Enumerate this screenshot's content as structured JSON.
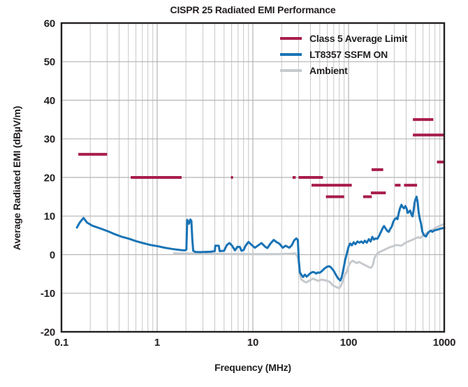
{
  "chart_data": {
    "type": "line",
    "title": "CISPR 25 Radiated EMI Performance",
    "xlabel": "Frequency (MHz)",
    "ylabel": "Average Radiated EMI (dBµV/m)",
    "x_scale": "log",
    "xlim": [
      0.1,
      1000
    ],
    "ylim": [
      -20,
      60
    ],
    "x_ticks": [
      0.1,
      1,
      10,
      100,
      1000
    ],
    "x_tick_labels": [
      "0.1",
      "1",
      "10",
      "100",
      "1000"
    ],
    "y_ticks": [
      -20,
      -10,
      0,
      10,
      20,
      30,
      40,
      50,
      60
    ],
    "y_tick_labels": [
      "-20",
      "-10",
      "0",
      "10",
      "20",
      "30",
      "40",
      "50",
      "60"
    ],
    "grid": true,
    "legend_position": "top-right",
    "colors": {
      "limit": "#a81d4d",
      "ssfm_on": "#1973b5",
      "ambient": "#c6cace",
      "grid_minor": "#c7c7c7",
      "grid_major": "#b5b5b5",
      "frame": "#231f20",
      "text": "#231f20"
    },
    "series": [
      {
        "name": "Class 5 Average Limit",
        "type": "segments",
        "color": "#a81d4d",
        "units": "MHz, dBµV/m",
        "segments": [
          [
            0.15,
            0.3,
            26
          ],
          [
            0.53,
            1.8,
            20
          ],
          [
            5.9,
            6.2,
            20
          ],
          [
            26,
            28,
            20
          ],
          [
            30,
            54,
            20
          ],
          [
            41,
            108,
            18
          ],
          [
            58,
            90,
            15
          ],
          [
            142,
            175,
            15
          ],
          [
            171,
            245,
            16
          ],
          [
            174,
            230,
            22
          ],
          [
            305,
            350,
            18
          ],
          [
            380,
            520,
            18
          ],
          [
            470,
            770,
            35
          ],
          [
            470,
            1000,
            31
          ],
          [
            840,
            1000,
            24
          ]
        ]
      },
      {
        "name": "LT8357 SSFM ON",
        "type": "line",
        "color": "#1973b5",
        "points": [
          [
            0.145,
            7.0
          ],
          [
            0.155,
            8.3
          ],
          [
            0.17,
            9.5
          ],
          [
            0.185,
            8.3
          ],
          [
            0.21,
            7.5
          ],
          [
            0.26,
            6.7
          ],
          [
            0.31,
            6.0
          ],
          [
            0.36,
            5.3
          ],
          [
            0.43,
            4.6
          ],
          [
            0.51,
            4.1
          ],
          [
            0.6,
            3.5
          ],
          [
            0.71,
            3.0
          ],
          [
            0.85,
            2.5
          ],
          [
            1.0,
            2.2
          ],
          [
            1.2,
            1.8
          ],
          [
            1.4,
            1.5
          ],
          [
            1.6,
            1.3
          ],
          [
            1.8,
            1.15
          ],
          [
            1.95,
            1.1
          ],
          [
            2.02,
            1.3
          ],
          [
            2.06,
            9.0
          ],
          [
            2.1,
            8.7
          ],
          [
            2.15,
            8.0
          ],
          [
            2.22,
            9.1
          ],
          [
            2.28,
            8.7
          ],
          [
            2.33,
            4.0
          ],
          [
            2.38,
            1.0
          ],
          [
            2.5,
            0.7
          ],
          [
            2.8,
            0.65
          ],
          [
            3.2,
            0.7
          ],
          [
            3.6,
            0.75
          ],
          [
            4.0,
            0.9
          ],
          [
            4.05,
            2.3
          ],
          [
            4.4,
            2.3
          ],
          [
            4.5,
            0.9
          ],
          [
            5.0,
            1.0
          ],
          [
            5.35,
            2.5
          ],
          [
            5.7,
            3.0
          ],
          [
            6.1,
            2.2
          ],
          [
            6.5,
            1.1
          ],
          [
            6.9,
            2.0
          ],
          [
            7.3,
            2.0
          ],
          [
            7.6,
            1.0
          ],
          [
            8.0,
            1.2
          ],
          [
            8.4,
            2.3
          ],
          [
            9.0,
            3.3
          ],
          [
            9.6,
            2.6
          ],
          [
            10.5,
            1.8
          ],
          [
            11.4,
            2.4
          ],
          [
            12.3,
            3.0
          ],
          [
            13.5,
            2.0
          ],
          [
            14.2,
            1.7
          ],
          [
            15.2,
            2.8
          ],
          [
            16.5,
            3.8
          ],
          [
            17.8,
            3.2
          ],
          [
            19.0,
            2.8
          ],
          [
            20.5,
            1.8
          ],
          [
            22.0,
            2.3
          ],
          [
            24.0,
            1.8
          ],
          [
            25.5,
            2.4
          ],
          [
            27.0,
            3.7
          ],
          [
            28.5,
            4.2
          ],
          [
            29.5,
            3.8
          ],
          [
            30.2,
            -1.5
          ],
          [
            31.0,
            -4.6
          ],
          [
            32.5,
            -5.4
          ],
          [
            33.5,
            -5.8
          ],
          [
            35.0,
            -5.2
          ],
          [
            36.5,
            -5.7
          ],
          [
            38.0,
            -5.3
          ],
          [
            40.0,
            -4.8
          ],
          [
            42.0,
            -4.5
          ],
          [
            44.0,
            -4.6
          ],
          [
            46.0,
            -4.9
          ],
          [
            48.0,
            -4.6
          ],
          [
            50.0,
            -4.7
          ],
          [
            53.0,
            -4.2
          ],
          [
            56.0,
            -3.6
          ],
          [
            60.0,
            -3.1
          ],
          [
            63.0,
            -3.0
          ],
          [
            66.0,
            -3.4
          ],
          [
            70.0,
            -4.2
          ],
          [
            74.0,
            -5.3
          ],
          [
            78.0,
            -6.2
          ],
          [
            82.0,
            -6.7
          ],
          [
            85.0,
            -5.8
          ],
          [
            88.0,
            -4.0
          ],
          [
            92.0,
            -1.5
          ],
          [
            96.0,
            0.3
          ],
          [
            100.0,
            2.0
          ],
          [
            104.0,
            2.9
          ],
          [
            108.0,
            2.4
          ],
          [
            113.0,
            3.2
          ],
          [
            118.0,
            2.7
          ],
          [
            124.0,
            3.4
          ],
          [
            130.0,
            3.1
          ],
          [
            136.0,
            3.4
          ],
          [
            142.0,
            3.0
          ],
          [
            148.0,
            3.6
          ],
          [
            155.0,
            3.1
          ],
          [
            163.0,
            4.0
          ],
          [
            170.0,
            3.4
          ],
          [
            177.0,
            4.6
          ],
          [
            184.0,
            3.9
          ],
          [
            192.0,
            4.2
          ],
          [
            200.0,
            4.1
          ],
          [
            208.0,
            4.8
          ],
          [
            218.0,
            5.9
          ],
          [
            228.0,
            6.9
          ],
          [
            235.0,
            7.4
          ],
          [
            245.0,
            6.7
          ],
          [
            255.0,
            6.1
          ],
          [
            263.0,
            5.9
          ],
          [
            272.0,
            6.6
          ],
          [
            283.0,
            7.3
          ],
          [
            294.0,
            8.6
          ],
          [
            305.0,
            9.2
          ],
          [
            315.0,
            9.5
          ],
          [
            325.0,
            9.2
          ],
          [
            335.0,
            10.8
          ],
          [
            345.0,
            12.0
          ],
          [
            357.0,
            12.9
          ],
          [
            368.0,
            12.3
          ],
          [
            380.0,
            12.0
          ],
          [
            392.0,
            12.6
          ],
          [
            405.0,
            11.9
          ],
          [
            415.0,
            10.8
          ],
          [
            428.0,
            11.1
          ],
          [
            440.0,
            11.4
          ],
          [
            455.0,
            10.4
          ],
          [
            466.0,
            9.9
          ],
          [
            478.0,
            11.5
          ],
          [
            490.0,
            13.5
          ],
          [
            502.0,
            14.4
          ],
          [
            514.0,
            15.0
          ],
          [
            527.0,
            13.6
          ],
          [
            540.0,
            11.0
          ],
          [
            555.0,
            9.3
          ],
          [
            571.0,
            8.1
          ],
          [
            590.0,
            6.0
          ],
          [
            610.0,
            5.1
          ],
          [
            630.0,
            4.8
          ],
          [
            645.0,
            4.7
          ],
          [
            660.0,
            5.2
          ],
          [
            680.0,
            5.7
          ],
          [
            700.0,
            6.0
          ],
          [
            725.0,
            6.2
          ],
          [
            750.0,
            5.9
          ],
          [
            780.0,
            6.2
          ],
          [
            820.0,
            6.4
          ],
          [
            860.0,
            6.5
          ],
          [
            900.0,
            6.7
          ],
          [
            950.0,
            6.8
          ],
          [
            1000.0,
            7.0
          ]
        ]
      },
      {
        "name": "Ambient",
        "type": "line",
        "color": "#c6cace",
        "points": [
          [
            1.5,
            0.3
          ],
          [
            2.5,
            0.25
          ],
          [
            4.0,
            0.2
          ],
          [
            6.0,
            0.15
          ],
          [
            9.0,
            0.1
          ],
          [
            13.0,
            0.1
          ],
          [
            18.0,
            0.15
          ],
          [
            24.0,
            0.2
          ],
          [
            28.0,
            0.3
          ],
          [
            29.8,
            -1.0
          ],
          [
            31.0,
            -5.0
          ],
          [
            32.0,
            -6.4
          ],
          [
            34.0,
            -6.9
          ],
          [
            36.0,
            -7.2
          ],
          [
            38.0,
            -6.9
          ],
          [
            40.0,
            -6.6
          ],
          [
            42.5,
            -6.2
          ],
          [
            45.0,
            -6.5
          ],
          [
            48.0,
            -6.8
          ],
          [
            52.0,
            -6.5
          ],
          [
            56.0,
            -6.6
          ],
          [
            60.0,
            -6.8
          ],
          [
            64.0,
            -7.1
          ],
          [
            68.0,
            -7.9
          ],
          [
            72.0,
            -8.2
          ],
          [
            76.0,
            -8.5
          ],
          [
            80.0,
            -8.7
          ],
          [
            84.0,
            -7.9
          ],
          [
            88.0,
            -6.5
          ],
          [
            92.0,
            -5.2
          ],
          [
            96.0,
            -4.4
          ],
          [
            100.0,
            -3.0
          ],
          [
            105.0,
            -2.0
          ],
          [
            110.0,
            -1.6
          ],
          [
            116.0,
            -1.9
          ],
          [
            122.0,
            -2.2
          ],
          [
            128.0,
            -1.9
          ],
          [
            134.0,
            -2.1
          ],
          [
            140.0,
            -2.4
          ],
          [
            148.0,
            -2.7
          ],
          [
            156.0,
            -3.0
          ],
          [
            164.0,
            -3.3
          ],
          [
            172.0,
            -3.4
          ],
          [
            180.0,
            -2.6
          ],
          [
            186.0,
            -1.0
          ],
          [
            193.0,
            -0.2
          ],
          [
            200.0,
            0.3
          ],
          [
            212.0,
            0.7
          ],
          [
            225.0,
            1.0
          ],
          [
            240.0,
            1.3
          ],
          [
            258.0,
            1.7
          ],
          [
            276.0,
            2.0
          ],
          [
            295.0,
            2.2
          ],
          [
            315.0,
            2.5
          ],
          [
            335.0,
            2.4
          ],
          [
            355.0,
            2.3
          ],
          [
            375.0,
            2.7
          ],
          [
            395.0,
            3.1
          ],
          [
            420.0,
            3.4
          ],
          [
            450.0,
            3.7
          ],
          [
            480.0,
            4.0
          ],
          [
            510.0,
            4.3
          ],
          [
            540.0,
            4.5
          ],
          [
            565.0,
            4.3
          ],
          [
            585.0,
            4.7
          ],
          [
            610.0,
            5.1
          ],
          [
            640.0,
            5.4
          ],
          [
            670.0,
            5.7
          ],
          [
            700.0,
            6.0
          ],
          [
            740.0,
            6.3
          ],
          [
            780.0,
            6.7
          ],
          [
            820.0,
            7.0
          ],
          [
            860.0,
            7.2
          ],
          [
            900.0,
            7.5
          ],
          [
            950.0,
            7.7
          ],
          [
            1000.0,
            8.0
          ]
        ]
      }
    ]
  },
  "legend": {
    "items": [
      {
        "label": "Class 5 Average Limit",
        "color": "#a81d4d"
      },
      {
        "label": "LT8357 SSFM ON",
        "color": "#1973b5"
      },
      {
        "label": "Ambient",
        "color": "#c6cace"
      }
    ]
  }
}
